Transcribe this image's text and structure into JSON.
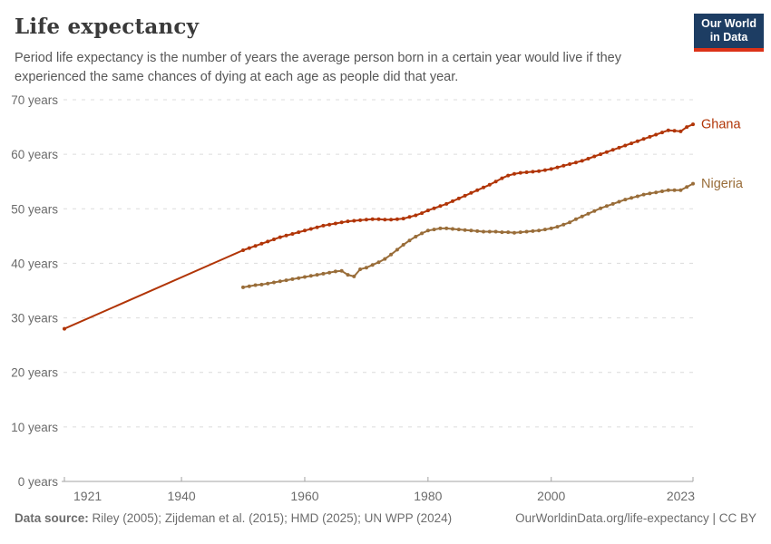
{
  "header": {
    "title": "Life expectancy",
    "subtitle": "Period life expectancy is the number of years the average person born in a certain year would live if they experienced the same chances of dying at each age as people did that year.",
    "logo": {
      "line1": "Our World",
      "line2": "in Data"
    }
  },
  "chart_data": {
    "type": "line",
    "title": "Life expectancy",
    "xlabel": "",
    "ylabel": "",
    "xlim": [
      1921,
      2023
    ],
    "ylim": [
      0,
      70
    ],
    "x_ticks": [
      1921,
      1940,
      1960,
      1980,
      2000,
      2023
    ],
    "y_ticks": [
      0,
      10,
      20,
      30,
      40,
      50,
      60,
      70
    ],
    "y_tick_suffix": " years",
    "grid": "horizontal-dashed",
    "legend_position": "end-of-line-labels",
    "series": [
      {
        "name": "Ghana",
        "color": "#B13507",
        "points": [
          [
            1921,
            28.0
          ],
          [
            1950,
            42.4
          ],
          [
            1951,
            42.8
          ],
          [
            1952,
            43.2
          ],
          [
            1953,
            43.6
          ],
          [
            1954,
            44.0
          ],
          [
            1955,
            44.4
          ],
          [
            1956,
            44.8
          ],
          [
            1957,
            45.1
          ],
          [
            1958,
            45.4
          ],
          [
            1959,
            45.7
          ],
          [
            1960,
            46.0
          ],
          [
            1961,
            46.3
          ],
          [
            1962,
            46.6
          ],
          [
            1963,
            46.9
          ],
          [
            1964,
            47.1
          ],
          [
            1965,
            47.3
          ],
          [
            1966,
            47.5
          ],
          [
            1967,
            47.7
          ],
          [
            1968,
            47.8
          ],
          [
            1969,
            47.9
          ],
          [
            1970,
            48.0
          ],
          [
            1971,
            48.1
          ],
          [
            1972,
            48.1
          ],
          [
            1973,
            48.0
          ],
          [
            1974,
            48.0
          ],
          [
            1975,
            48.1
          ],
          [
            1976,
            48.2
          ],
          [
            1977,
            48.5
          ],
          [
            1978,
            48.8
          ],
          [
            1979,
            49.2
          ],
          [
            1980,
            49.7
          ],
          [
            1981,
            50.1
          ],
          [
            1982,
            50.5
          ],
          [
            1983,
            50.9
          ],
          [
            1984,
            51.4
          ],
          [
            1985,
            51.9
          ],
          [
            1986,
            52.4
          ],
          [
            1987,
            52.9
          ],
          [
            1988,
            53.4
          ],
          [
            1989,
            53.9
          ],
          [
            1990,
            54.4
          ],
          [
            1991,
            55.0
          ],
          [
            1992,
            55.6
          ],
          [
            1993,
            56.1
          ],
          [
            1994,
            56.4
          ],
          [
            1995,
            56.6
          ],
          [
            1996,
            56.7
          ],
          [
            1997,
            56.8
          ],
          [
            1998,
            56.9
          ],
          [
            1999,
            57.1
          ],
          [
            2000,
            57.3
          ],
          [
            2001,
            57.6
          ],
          [
            2002,
            57.9
          ],
          [
            2003,
            58.2
          ],
          [
            2004,
            58.5
          ],
          [
            2005,
            58.8
          ],
          [
            2006,
            59.2
          ],
          [
            2007,
            59.6
          ],
          [
            2008,
            60.0
          ],
          [
            2009,
            60.4
          ],
          [
            2010,
            60.8
          ],
          [
            2011,
            61.2
          ],
          [
            2012,
            61.6
          ],
          [
            2013,
            62.0
          ],
          [
            2014,
            62.4
          ],
          [
            2015,
            62.8
          ],
          [
            2016,
            63.2
          ],
          [
            2017,
            63.6
          ],
          [
            2018,
            64.0
          ],
          [
            2019,
            64.4
          ],
          [
            2020,
            64.3
          ],
          [
            2021,
            64.2
          ],
          [
            2022,
            65.0
          ],
          [
            2023,
            65.5
          ]
        ]
      },
      {
        "name": "Nigeria",
        "color": "#996D39",
        "points": [
          [
            1950,
            35.6
          ],
          [
            1951,
            35.8
          ],
          [
            1952,
            36.0
          ],
          [
            1953,
            36.1
          ],
          [
            1954,
            36.3
          ],
          [
            1955,
            36.5
          ],
          [
            1956,
            36.7
          ],
          [
            1957,
            36.9
          ],
          [
            1958,
            37.1
          ],
          [
            1959,
            37.3
          ],
          [
            1960,
            37.5
          ],
          [
            1961,
            37.7
          ],
          [
            1962,
            37.9
          ],
          [
            1963,
            38.1
          ],
          [
            1964,
            38.3
          ],
          [
            1965,
            38.5
          ],
          [
            1966,
            38.6
          ],
          [
            1967,
            37.9
          ],
          [
            1968,
            37.6
          ],
          [
            1969,
            38.9
          ],
          [
            1970,
            39.2
          ],
          [
            1971,
            39.7
          ],
          [
            1972,
            40.2
          ],
          [
            1973,
            40.8
          ],
          [
            1974,
            41.6
          ],
          [
            1975,
            42.5
          ],
          [
            1976,
            43.4
          ],
          [
            1977,
            44.2
          ],
          [
            1978,
            44.9
          ],
          [
            1979,
            45.5
          ],
          [
            1980,
            46.0
          ],
          [
            1981,
            46.2
          ],
          [
            1982,
            46.4
          ],
          [
            1983,
            46.4
          ],
          [
            1984,
            46.3
          ],
          [
            1985,
            46.2
          ],
          [
            1986,
            46.1
          ],
          [
            1987,
            46.0
          ],
          [
            1988,
            45.9
          ],
          [
            1989,
            45.8
          ],
          [
            1990,
            45.8
          ],
          [
            1991,
            45.8
          ],
          [
            1992,
            45.7
          ],
          [
            1993,
            45.7
          ],
          [
            1994,
            45.6
          ],
          [
            1995,
            45.7
          ],
          [
            1996,
            45.8
          ],
          [
            1997,
            45.9
          ],
          [
            1998,
            46.0
          ],
          [
            1999,
            46.2
          ],
          [
            2000,
            46.4
          ],
          [
            2001,
            46.7
          ],
          [
            2002,
            47.1
          ],
          [
            2003,
            47.5
          ],
          [
            2004,
            48.1
          ],
          [
            2005,
            48.6
          ],
          [
            2006,
            49.1
          ],
          [
            2007,
            49.6
          ],
          [
            2008,
            50.1
          ],
          [
            2009,
            50.5
          ],
          [
            2010,
            50.9
          ],
          [
            2011,
            51.3
          ],
          [
            2012,
            51.7
          ],
          [
            2013,
            52.0
          ],
          [
            2014,
            52.3
          ],
          [
            2015,
            52.6
          ],
          [
            2016,
            52.8
          ],
          [
            2017,
            53.0
          ],
          [
            2018,
            53.2
          ],
          [
            2019,
            53.4
          ],
          [
            2020,
            53.4
          ],
          [
            2021,
            53.4
          ],
          [
            2022,
            54.0
          ],
          [
            2023,
            54.6
          ]
        ]
      }
    ]
  },
  "footer": {
    "source_label": "Data source:",
    "source_text": " Riley (2005); Zijdeman et al. (2015); HMD (2025); UN WPP (2024)",
    "credit": "OurWorldinData.org/life-expectancy | CC BY"
  },
  "colors": {
    "accent_ghana": "#B13507",
    "accent_nigeria": "#996D39",
    "logo_bg": "#1d3d63",
    "logo_bar": "#dc3218",
    "grid": "#dcdcdc",
    "axis": "#a3a3a3",
    "tick_text": "#6b6b6b"
  }
}
